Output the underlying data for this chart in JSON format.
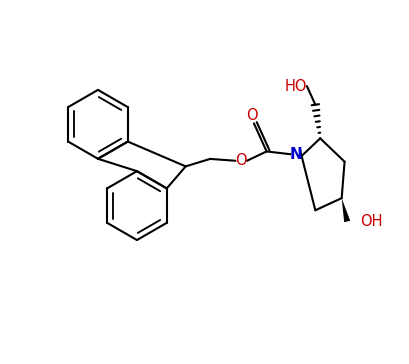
{
  "background_color": "#ffffff",
  "bond_color": "#000000",
  "N_color": "#0000cc",
  "O_color": "#cc0000",
  "line_width": 1.5,
  "font_size": 10.5,
  "figsize": [
    4.09,
    3.64
  ],
  "dpi": 100,
  "xlim": [
    0.3,
    9.5
  ],
  "ylim": [
    1.8,
    7.5
  ]
}
